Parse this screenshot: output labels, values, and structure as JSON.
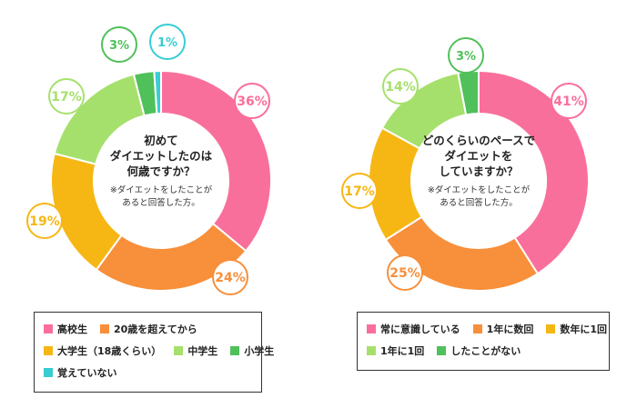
{
  "colors": {
    "pink": "#f96f9b",
    "orange": "#f88f3a",
    "yellow": "#f6b715",
    "light_green": "#a6e06c",
    "green": "#50c05a",
    "cyan": "#38cdd3"
  },
  "chart_data": [
    {
      "type": "pie",
      "donut": true,
      "center_text": {
        "lines": [
          "初めて",
          "ダイエットしたのは",
          "何歳ですか？"
        ],
        "note_lines": [
          "※ダイエットをしたことが",
          "あると回答した方。"
        ]
      },
      "slices": [
        {
          "name": "高校生",
          "value": 36,
          "label": "36%",
          "color": "#f96f9b"
        },
        {
          "name": "20歳を超えてから",
          "value": 24,
          "label": "24%",
          "color": "#f88f3a"
        },
        {
          "name": "大学生（18歳くらい）",
          "value": 19,
          "label": "19%",
          "color": "#f6b715"
        },
        {
          "name": "中学生",
          "value": 17,
          "label": "17%",
          "color": "#a6e06c"
        },
        {
          "name": "小学生",
          "value": 3,
          "label": "3%",
          "color": "#50c05a"
        },
        {
          "name": "覚えていない",
          "value": 1,
          "label": "1%",
          "color": "#38cdd3"
        }
      ],
      "legend": {
        "rows": [
          [
            "高校生",
            "20歳を超えてから"
          ],
          [
            "大学生（18歳くらい）",
            "中学生",
            "小学生"
          ],
          [
            "覚えていない"
          ]
        ]
      }
    },
    {
      "type": "pie",
      "donut": true,
      "center_text": {
        "lines": [
          "どのくらいのペースで",
          "ダイエットを",
          "していますか？"
        ],
        "note_lines": [
          "※ダイエットをしたことが",
          "あると回答した方。"
        ]
      },
      "slices": [
        {
          "name": "常に意識している",
          "value": 41,
          "label": "41%",
          "color": "#f96f9b"
        },
        {
          "name": "1年に数回",
          "value": 25,
          "label": "25%",
          "color": "#f88f3a"
        },
        {
          "name": "数年に1回",
          "value": 17,
          "label": "17%",
          "color": "#f6b715"
        },
        {
          "name": "1年に1回",
          "value": 14,
          "label": "14%",
          "color": "#a6e06c"
        },
        {
          "name": "したことがない",
          "value": 3,
          "label": "3%",
          "color": "#50c05a"
        }
      ],
      "legend": {
        "rows": [
          [
            "常に意識している",
            "1年に数回",
            "数年に1回"
          ],
          [
            "1年に1回",
            "したことがない"
          ]
        ]
      }
    }
  ]
}
